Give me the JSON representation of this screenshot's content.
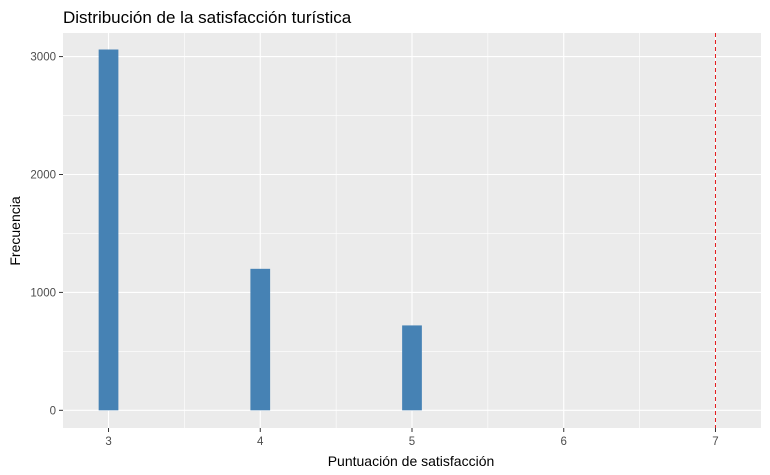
{
  "chart_data": {
    "type": "bar",
    "title": "Distribución de la satisfacción turística",
    "xlabel": "Puntuación de satisfacción",
    "ylabel": "Frecuencia",
    "xlim": [
      2.7,
      7.3
    ],
    "ylim": [
      -150,
      3200
    ],
    "x_ticks": [
      3,
      4,
      5,
      6,
      7
    ],
    "y_ticks": [
      0,
      1000,
      2000,
      3000
    ],
    "bars": [
      {
        "x": 3,
        "value": 3060
      },
      {
        "x": 4,
        "value": 1200
      },
      {
        "x": 5,
        "value": 720
      }
    ],
    "bar_width": 0.13,
    "reference_line": {
      "x": 7,
      "style": "dashed"
    },
    "grid": true,
    "legend": "none",
    "colors": {
      "bar": "#4682b4",
      "panel": "#ebebeb",
      "grid": "#ffffff",
      "reference_line": "#e41a1c"
    }
  }
}
